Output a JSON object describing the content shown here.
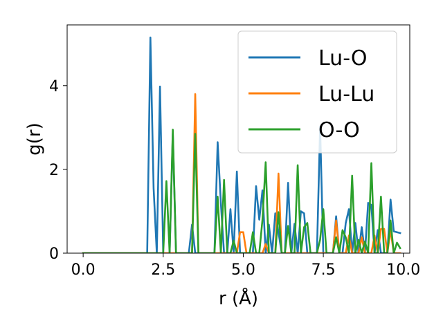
{
  "chart_data": {
    "type": "line",
    "title": "",
    "xlabel": "r (Å)",
    "ylabel": "g(r)",
    "xlim": [
      -0.5,
      10.2
    ],
    "ylim": [
      0,
      5.45
    ],
    "xticks": [
      0.0,
      2.5,
      5.0,
      7.5,
      10.0
    ],
    "xtick_labels": [
      "0.0",
      "2.5",
      "5.0",
      "7.5",
      "10.0"
    ],
    "yticks": [
      0,
      2,
      4
    ],
    "ytick_labels": [
      "0",
      "2",
      "4"
    ],
    "grid": false,
    "legend_position": "upper-right",
    "series": [
      {
        "name": "Lu-O",
        "color": "#1f77b4",
        "x": [
          0.0,
          2.0,
          2.1,
          2.2,
          2.3,
          2.4,
          2.5,
          2.6,
          2.7,
          2.8,
          2.9,
          3.0,
          3.1,
          3.2,
          3.3,
          3.4,
          3.5,
          3.6,
          3.7,
          3.8,
          3.9,
          4.0,
          4.1,
          4.2,
          4.3,
          4.4,
          4.5,
          4.6,
          4.7,
          4.8,
          4.9,
          5.0,
          5.1,
          5.2,
          5.3,
          5.4,
          5.5,
          5.6,
          5.7,
          5.8,
          5.9,
          6.0,
          6.1,
          6.2,
          6.3,
          6.4,
          6.5,
          6.6,
          6.7,
          6.8,
          6.9,
          7.0,
          7.1,
          7.2,
          7.3,
          7.4,
          7.5,
          7.6,
          7.7,
          7.8,
          7.9,
          8.0,
          8.1,
          8.2,
          8.3,
          8.4,
          8.5,
          8.6,
          8.7,
          8.8,
          8.9,
          9.0,
          9.1,
          9.2,
          9.3,
          9.4,
          9.5,
          9.6,
          9.7,
          9.8,
          9.9
        ],
        "y": [
          0,
          0,
          5.15,
          1.55,
          0,
          3.98,
          0,
          0,
          0,
          2.85,
          0,
          0,
          0,
          0,
          0,
          0.68,
          0,
          0,
          0,
          0,
          0,
          0,
          0,
          2.65,
          1.2,
          0,
          0,
          1.05,
          0,
          1.95,
          0,
          0,
          0,
          0,
          0,
          1.6,
          0.8,
          1.5,
          0,
          0.68,
          0,
          0.95,
          0.5,
          0,
          0,
          1.68,
          0,
          0.7,
          0,
          1.0,
          0.95,
          0,
          0,
          0,
          0,
          3.02,
          0,
          0,
          0,
          0,
          0.88,
          0,
          0,
          0.72,
          1.05,
          0,
          0.72,
          0,
          0.62,
          0,
          1.2,
          1.15,
          0,
          0.55,
          0,
          0,
          0,
          1.28,
          0.52,
          0.5,
          0.48
        ]
      },
      {
        "name": "Lu-Lu",
        "color": "#ff7f0e",
        "x": [
          0.0,
          3.4,
          3.5,
          3.6,
          3.7,
          4.8,
          4.9,
          5.0,
          5.1,
          5.6,
          5.7,
          5.8,
          6.0,
          6.1,
          6.2,
          7.8,
          7.9,
          8.0,
          8.2,
          8.3,
          8.4,
          8.6,
          8.7,
          8.8,
          8.9,
          9.0,
          9.1,
          9.2,
          9.3,
          9.4,
          9.5,
          9.6,
          9.7,
          9.8,
          9.9
        ],
        "y": [
          0,
          0,
          3.8,
          0,
          0,
          0,
          0.5,
          0.5,
          0,
          0,
          0.22,
          0,
          0,
          1.9,
          0,
          0,
          0.78,
          0,
          0,
          0.42,
          0,
          0,
          0.38,
          0,
          0,
          0,
          0.42,
          0,
          0.58,
          0.58,
          0,
          0.55,
          0,
          0,
          0
        ]
      },
      {
        "name": "O-O",
        "color": "#2ca02c",
        "x": [
          0.0,
          2.5,
          2.6,
          2.7,
          2.8,
          2.9,
          3.4,
          3.5,
          3.6,
          3.7,
          4.1,
          4.2,
          4.3,
          4.4,
          4.5,
          4.6,
          4.7,
          4.8,
          5.2,
          5.3,
          5.4,
          5.5,
          5.6,
          5.7,
          5.8,
          5.9,
          6.0,
          6.1,
          6.2,
          6.3,
          6.4,
          6.5,
          6.6,
          6.7,
          6.8,
          6.9,
          7.0,
          7.1,
          7.2,
          7.3,
          7.4,
          7.5,
          7.6,
          7.7,
          7.8,
          7.9,
          8.0,
          8.1,
          8.2,
          8.3,
          8.4,
          8.5,
          8.6,
          8.7,
          8.8,
          8.9,
          9.0,
          9.1,
          9.2,
          9.3,
          9.4,
          9.5,
          9.6,
          9.7,
          9.8,
          9.9
        ],
        "y": [
          0,
          0,
          1.72,
          0,
          2.95,
          0,
          0,
          2.85,
          0,
          0,
          0,
          1.35,
          0,
          1.75,
          0,
          0,
          0.3,
          0,
          0,
          0.5,
          0,
          0,
          0.8,
          2.17,
          0,
          0,
          0,
          0.98,
          0,
          0,
          0.65,
          0,
          0,
          2.1,
          0,
          0.62,
          0.72,
          0,
          0,
          0,
          0.32,
          1.05,
          0,
          0,
          0,
          0.38,
          0,
          0.55,
          0.38,
          0,
          1.85,
          0,
          0.32,
          0,
          0.28,
          0,
          2.15,
          0,
          0,
          1.35,
          0,
          0,
          0.78,
          0,
          0.25,
          0.12
        ]
      }
    ]
  }
}
